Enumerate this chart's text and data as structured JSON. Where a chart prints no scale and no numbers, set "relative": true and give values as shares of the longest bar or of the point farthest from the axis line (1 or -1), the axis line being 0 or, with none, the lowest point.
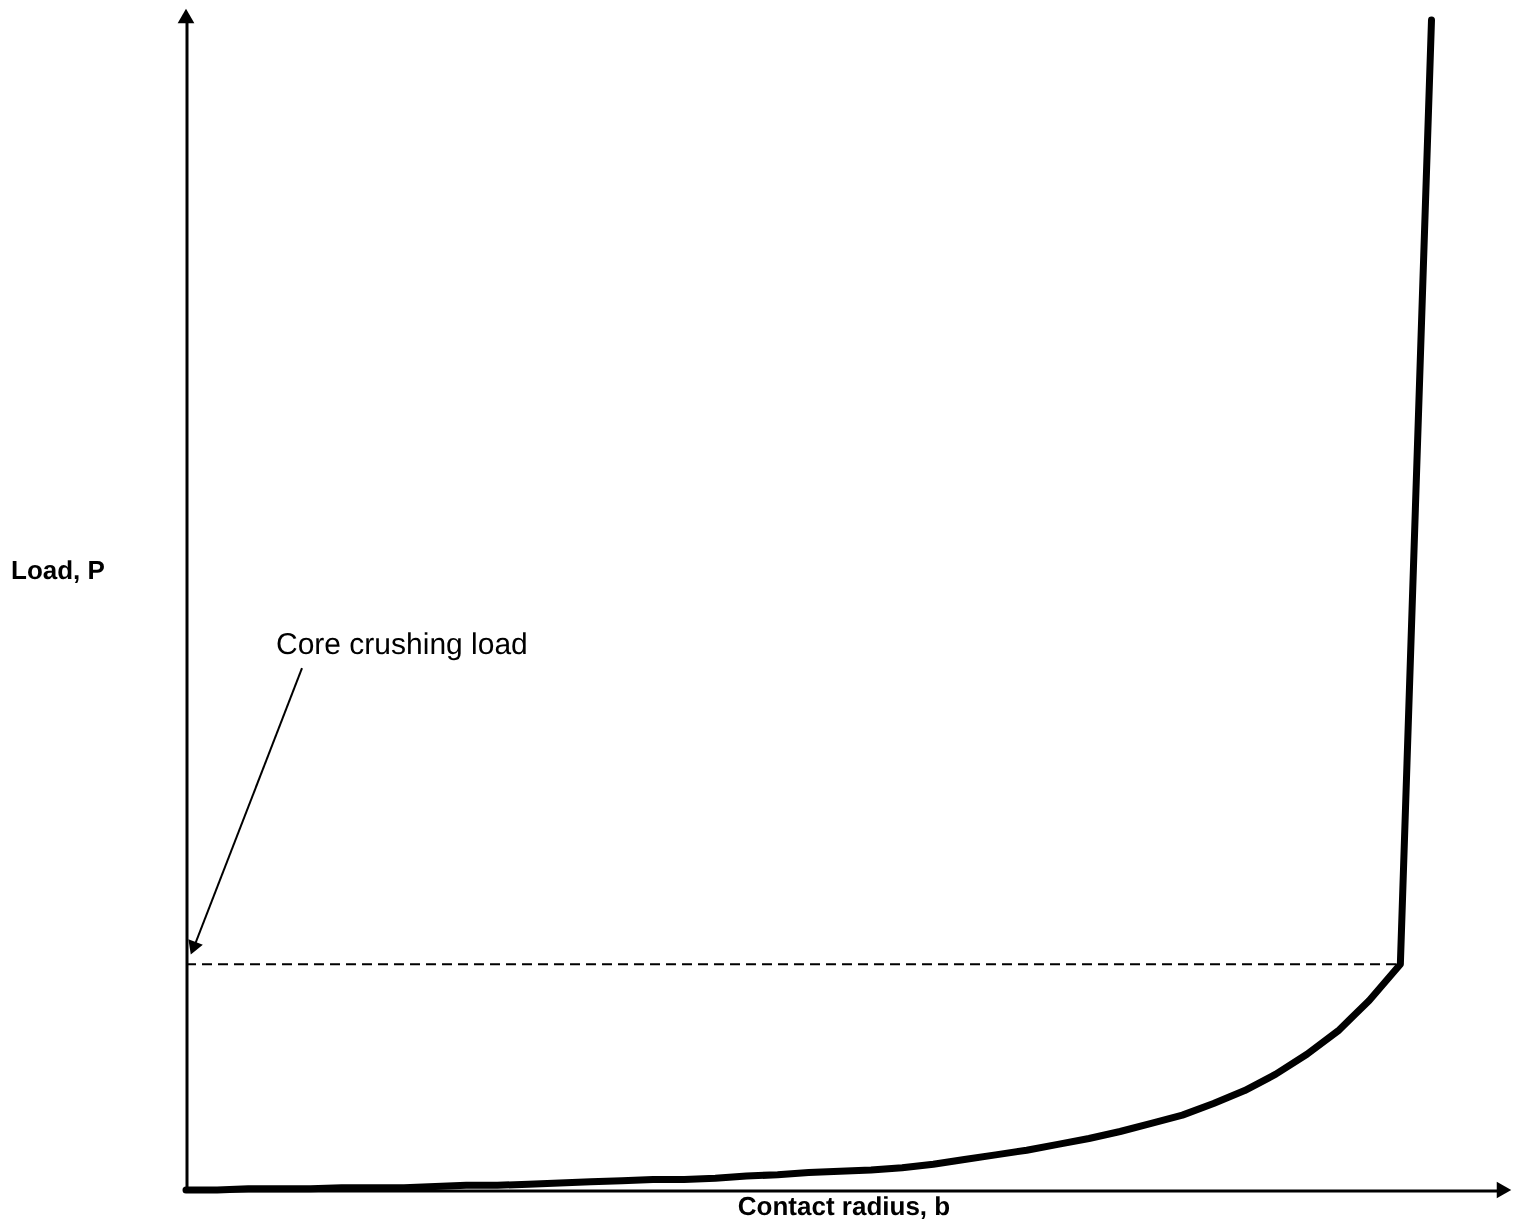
{
  "chart_data": {
    "type": "line",
    "relative": true,
    "xlabel": "Contact radius, b",
    "ylabel": "Load, P",
    "categories": [
      null,
      null,
      null,
      null,
      null,
      null,
      null,
      null,
      null,
      null,
      null,
      null,
      null,
      null,
      null,
      null,
      null,
      null,
      null,
      null,
      null,
      null,
      null,
      null,
      null,
      null,
      null,
      null,
      null,
      null,
      null,
      null,
      null,
      null,
      null,
      null,
      null,
      null,
      null,
      null,
      null
    ],
    "series": [
      {
        "color": "#000000",
        "values": [
          0,
          0,
          0.001,
          0.001,
          0.001,
          0.002,
          0.002,
          0.002,
          0.003,
          0.004,
          0.004,
          0.005,
          0.006,
          0.007,
          0.008,
          0.009,
          0.009,
          0.01,
          0.012,
          0.013,
          0.015,
          0.016,
          0.017,
          0.019,
          0.022,
          0.026,
          0.03,
          0.034,
          0.039,
          0.044,
          0.05,
          0.057,
          0.064,
          0.074,
          0.085,
          0.099,
          0.116,
          0.136,
          0.162,
          0.193,
          1
        ]
      }
    ],
    "ref_lines": [
      {
        "axis": "y",
        "value": 0.193,
        "label": "Core crushing load",
        "line_style": "dashed",
        "color": "#000000"
      }
    ],
    "line_style": "solid"
  }
}
